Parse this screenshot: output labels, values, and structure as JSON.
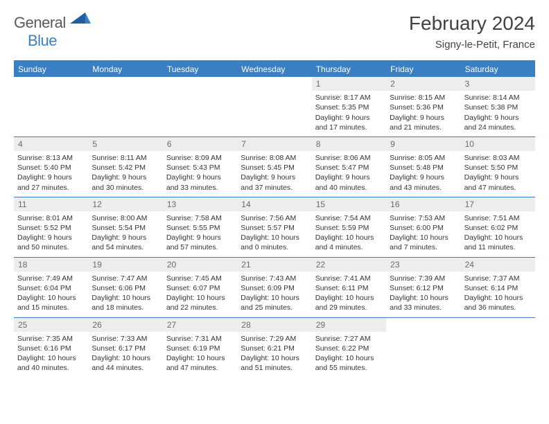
{
  "logo": {
    "text1": "General",
    "text2": "Blue"
  },
  "title": "February 2024",
  "location": "Signy-le-Petit, France",
  "day_names": [
    "Sunday",
    "Monday",
    "Tuesday",
    "Wednesday",
    "Thursday",
    "Friday",
    "Saturday"
  ],
  "colors": {
    "accent": "#3a7fc4",
    "header_bg": "#3a7fc4",
    "header_text": "#ffffff",
    "daynum_bg": "#ededed",
    "daynum_text": "#6a6a6a",
    "body_text": "#333333",
    "page_bg": "#ffffff",
    "border": "#3a7fc4"
  },
  "typography": {
    "title_fontsize_pt": 21,
    "location_fontsize_pt": 11,
    "dayname_fontsize_pt": 9,
    "cell_fontsize_pt": 8,
    "font_family": "Arial"
  },
  "layout": {
    "columns": 7,
    "rows": 5,
    "first_day_column_index": 4
  },
  "weeks": [
    [
      null,
      null,
      null,
      null,
      {
        "n": "1",
        "sr": "Sunrise: 8:17 AM",
        "ss": "Sunset: 5:35 PM",
        "dl": "Daylight: 9 hours and 17 minutes."
      },
      {
        "n": "2",
        "sr": "Sunrise: 8:15 AM",
        "ss": "Sunset: 5:36 PM",
        "dl": "Daylight: 9 hours and 21 minutes."
      },
      {
        "n": "3",
        "sr": "Sunrise: 8:14 AM",
        "ss": "Sunset: 5:38 PM",
        "dl": "Daylight: 9 hours and 24 minutes."
      }
    ],
    [
      {
        "n": "4",
        "sr": "Sunrise: 8:13 AM",
        "ss": "Sunset: 5:40 PM",
        "dl": "Daylight: 9 hours and 27 minutes."
      },
      {
        "n": "5",
        "sr": "Sunrise: 8:11 AM",
        "ss": "Sunset: 5:42 PM",
        "dl": "Daylight: 9 hours and 30 minutes."
      },
      {
        "n": "6",
        "sr": "Sunrise: 8:09 AM",
        "ss": "Sunset: 5:43 PM",
        "dl": "Daylight: 9 hours and 33 minutes."
      },
      {
        "n": "7",
        "sr": "Sunrise: 8:08 AM",
        "ss": "Sunset: 5:45 PM",
        "dl": "Daylight: 9 hours and 37 minutes."
      },
      {
        "n": "8",
        "sr": "Sunrise: 8:06 AM",
        "ss": "Sunset: 5:47 PM",
        "dl": "Daylight: 9 hours and 40 minutes."
      },
      {
        "n": "9",
        "sr": "Sunrise: 8:05 AM",
        "ss": "Sunset: 5:48 PM",
        "dl": "Daylight: 9 hours and 43 minutes."
      },
      {
        "n": "10",
        "sr": "Sunrise: 8:03 AM",
        "ss": "Sunset: 5:50 PM",
        "dl": "Daylight: 9 hours and 47 minutes."
      }
    ],
    [
      {
        "n": "11",
        "sr": "Sunrise: 8:01 AM",
        "ss": "Sunset: 5:52 PM",
        "dl": "Daylight: 9 hours and 50 minutes."
      },
      {
        "n": "12",
        "sr": "Sunrise: 8:00 AM",
        "ss": "Sunset: 5:54 PM",
        "dl": "Daylight: 9 hours and 54 minutes."
      },
      {
        "n": "13",
        "sr": "Sunrise: 7:58 AM",
        "ss": "Sunset: 5:55 PM",
        "dl": "Daylight: 9 hours and 57 minutes."
      },
      {
        "n": "14",
        "sr": "Sunrise: 7:56 AM",
        "ss": "Sunset: 5:57 PM",
        "dl": "Daylight: 10 hours and 0 minutes."
      },
      {
        "n": "15",
        "sr": "Sunrise: 7:54 AM",
        "ss": "Sunset: 5:59 PM",
        "dl": "Daylight: 10 hours and 4 minutes."
      },
      {
        "n": "16",
        "sr": "Sunrise: 7:53 AM",
        "ss": "Sunset: 6:00 PM",
        "dl": "Daylight: 10 hours and 7 minutes."
      },
      {
        "n": "17",
        "sr": "Sunrise: 7:51 AM",
        "ss": "Sunset: 6:02 PM",
        "dl": "Daylight: 10 hours and 11 minutes."
      }
    ],
    [
      {
        "n": "18",
        "sr": "Sunrise: 7:49 AM",
        "ss": "Sunset: 6:04 PM",
        "dl": "Daylight: 10 hours and 15 minutes."
      },
      {
        "n": "19",
        "sr": "Sunrise: 7:47 AM",
        "ss": "Sunset: 6:06 PM",
        "dl": "Daylight: 10 hours and 18 minutes."
      },
      {
        "n": "20",
        "sr": "Sunrise: 7:45 AM",
        "ss": "Sunset: 6:07 PM",
        "dl": "Daylight: 10 hours and 22 minutes."
      },
      {
        "n": "21",
        "sr": "Sunrise: 7:43 AM",
        "ss": "Sunset: 6:09 PM",
        "dl": "Daylight: 10 hours and 25 minutes."
      },
      {
        "n": "22",
        "sr": "Sunrise: 7:41 AM",
        "ss": "Sunset: 6:11 PM",
        "dl": "Daylight: 10 hours and 29 minutes."
      },
      {
        "n": "23",
        "sr": "Sunrise: 7:39 AM",
        "ss": "Sunset: 6:12 PM",
        "dl": "Daylight: 10 hours and 33 minutes."
      },
      {
        "n": "24",
        "sr": "Sunrise: 7:37 AM",
        "ss": "Sunset: 6:14 PM",
        "dl": "Daylight: 10 hours and 36 minutes."
      }
    ],
    [
      {
        "n": "25",
        "sr": "Sunrise: 7:35 AM",
        "ss": "Sunset: 6:16 PM",
        "dl": "Daylight: 10 hours and 40 minutes."
      },
      {
        "n": "26",
        "sr": "Sunrise: 7:33 AM",
        "ss": "Sunset: 6:17 PM",
        "dl": "Daylight: 10 hours and 44 minutes."
      },
      {
        "n": "27",
        "sr": "Sunrise: 7:31 AM",
        "ss": "Sunset: 6:19 PM",
        "dl": "Daylight: 10 hours and 47 minutes."
      },
      {
        "n": "28",
        "sr": "Sunrise: 7:29 AM",
        "ss": "Sunset: 6:21 PM",
        "dl": "Daylight: 10 hours and 51 minutes."
      },
      {
        "n": "29",
        "sr": "Sunrise: 7:27 AM",
        "ss": "Sunset: 6:22 PM",
        "dl": "Daylight: 10 hours and 55 minutes."
      },
      null,
      null
    ]
  ]
}
